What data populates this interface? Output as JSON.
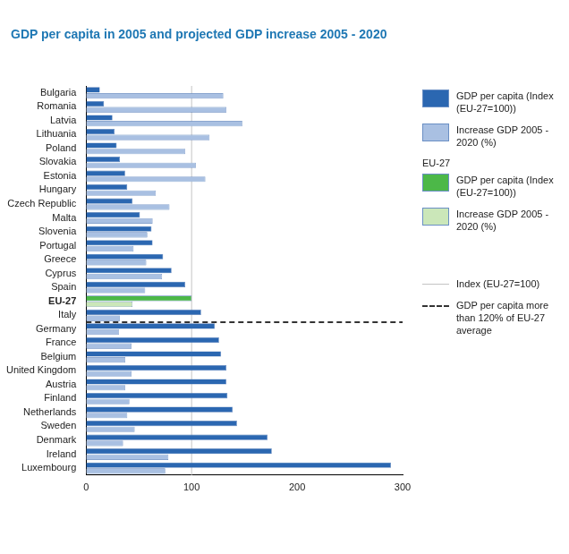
{
  "chart_data": {
    "type": "bar",
    "orientation": "horizontal",
    "title": "GDP per capita in 2005 and projected GDP increase 2005 - 2020",
    "categories": [
      "Bulgaria",
      "Romania",
      "Latvia",
      "Lithuania",
      "Poland",
      "Slovakia",
      "Estonia",
      "Hungary",
      "Czech Republic",
      "Malta",
      "Slovenia",
      "Portugal",
      "Greece",
      "Cyprus",
      "Spain",
      "EU-27",
      "Italy",
      "Germany",
      "France",
      "Belgium",
      "United Kingdom",
      "Austria",
      "Finland",
      "Netherlands",
      "Sweden",
      "Denmark",
      "Ireland",
      "Luxembourg"
    ],
    "series": [
      {
        "name": "GDP per capita (Index (EU-27=100))",
        "color": "#2b67b1",
        "values": [
          13,
          17,
          25,
          27,
          29,
          32,
          37,
          39,
          44,
          51,
          62,
          63,
          73,
          81,
          94,
          100,
          109,
          122,
          126,
          128,
          133,
          133,
          134,
          139,
          143,
          172,
          176,
          289
        ]
      },
      {
        "name": "Increase GDP 2005 - 2020 (%)",
        "color": "#a9c0e2",
        "values": [
          130,
          133,
          148,
          117,
          94,
          104,
          113,
          66,
          79,
          63,
          58,
          45,
          57,
          72,
          56,
          44,
          32,
          31,
          43,
          37,
          43,
          37,
          41,
          39,
          46,
          35,
          78,
          75
        ]
      }
    ],
    "highlight": {
      "title": "EU-27",
      "category": "EU-27",
      "colors": [
        "#4cb848",
        "#cbe7b9"
      ]
    },
    "annotations": [
      {
        "type": "vline",
        "x": 100,
        "label": "Index (EU-27=100)",
        "color": "#c4c4c4"
      },
      {
        "type": "hline",
        "between": [
          "Italy",
          "Germany"
        ],
        "label": "GDP per capita more than 120% of EU-27 average",
        "line_style": "dashed",
        "color": "#333333"
      }
    ],
    "xlim": [
      0,
      300
    ],
    "xticks": [
      0,
      100,
      200,
      300
    ],
    "grid": false,
    "legend": "right"
  }
}
